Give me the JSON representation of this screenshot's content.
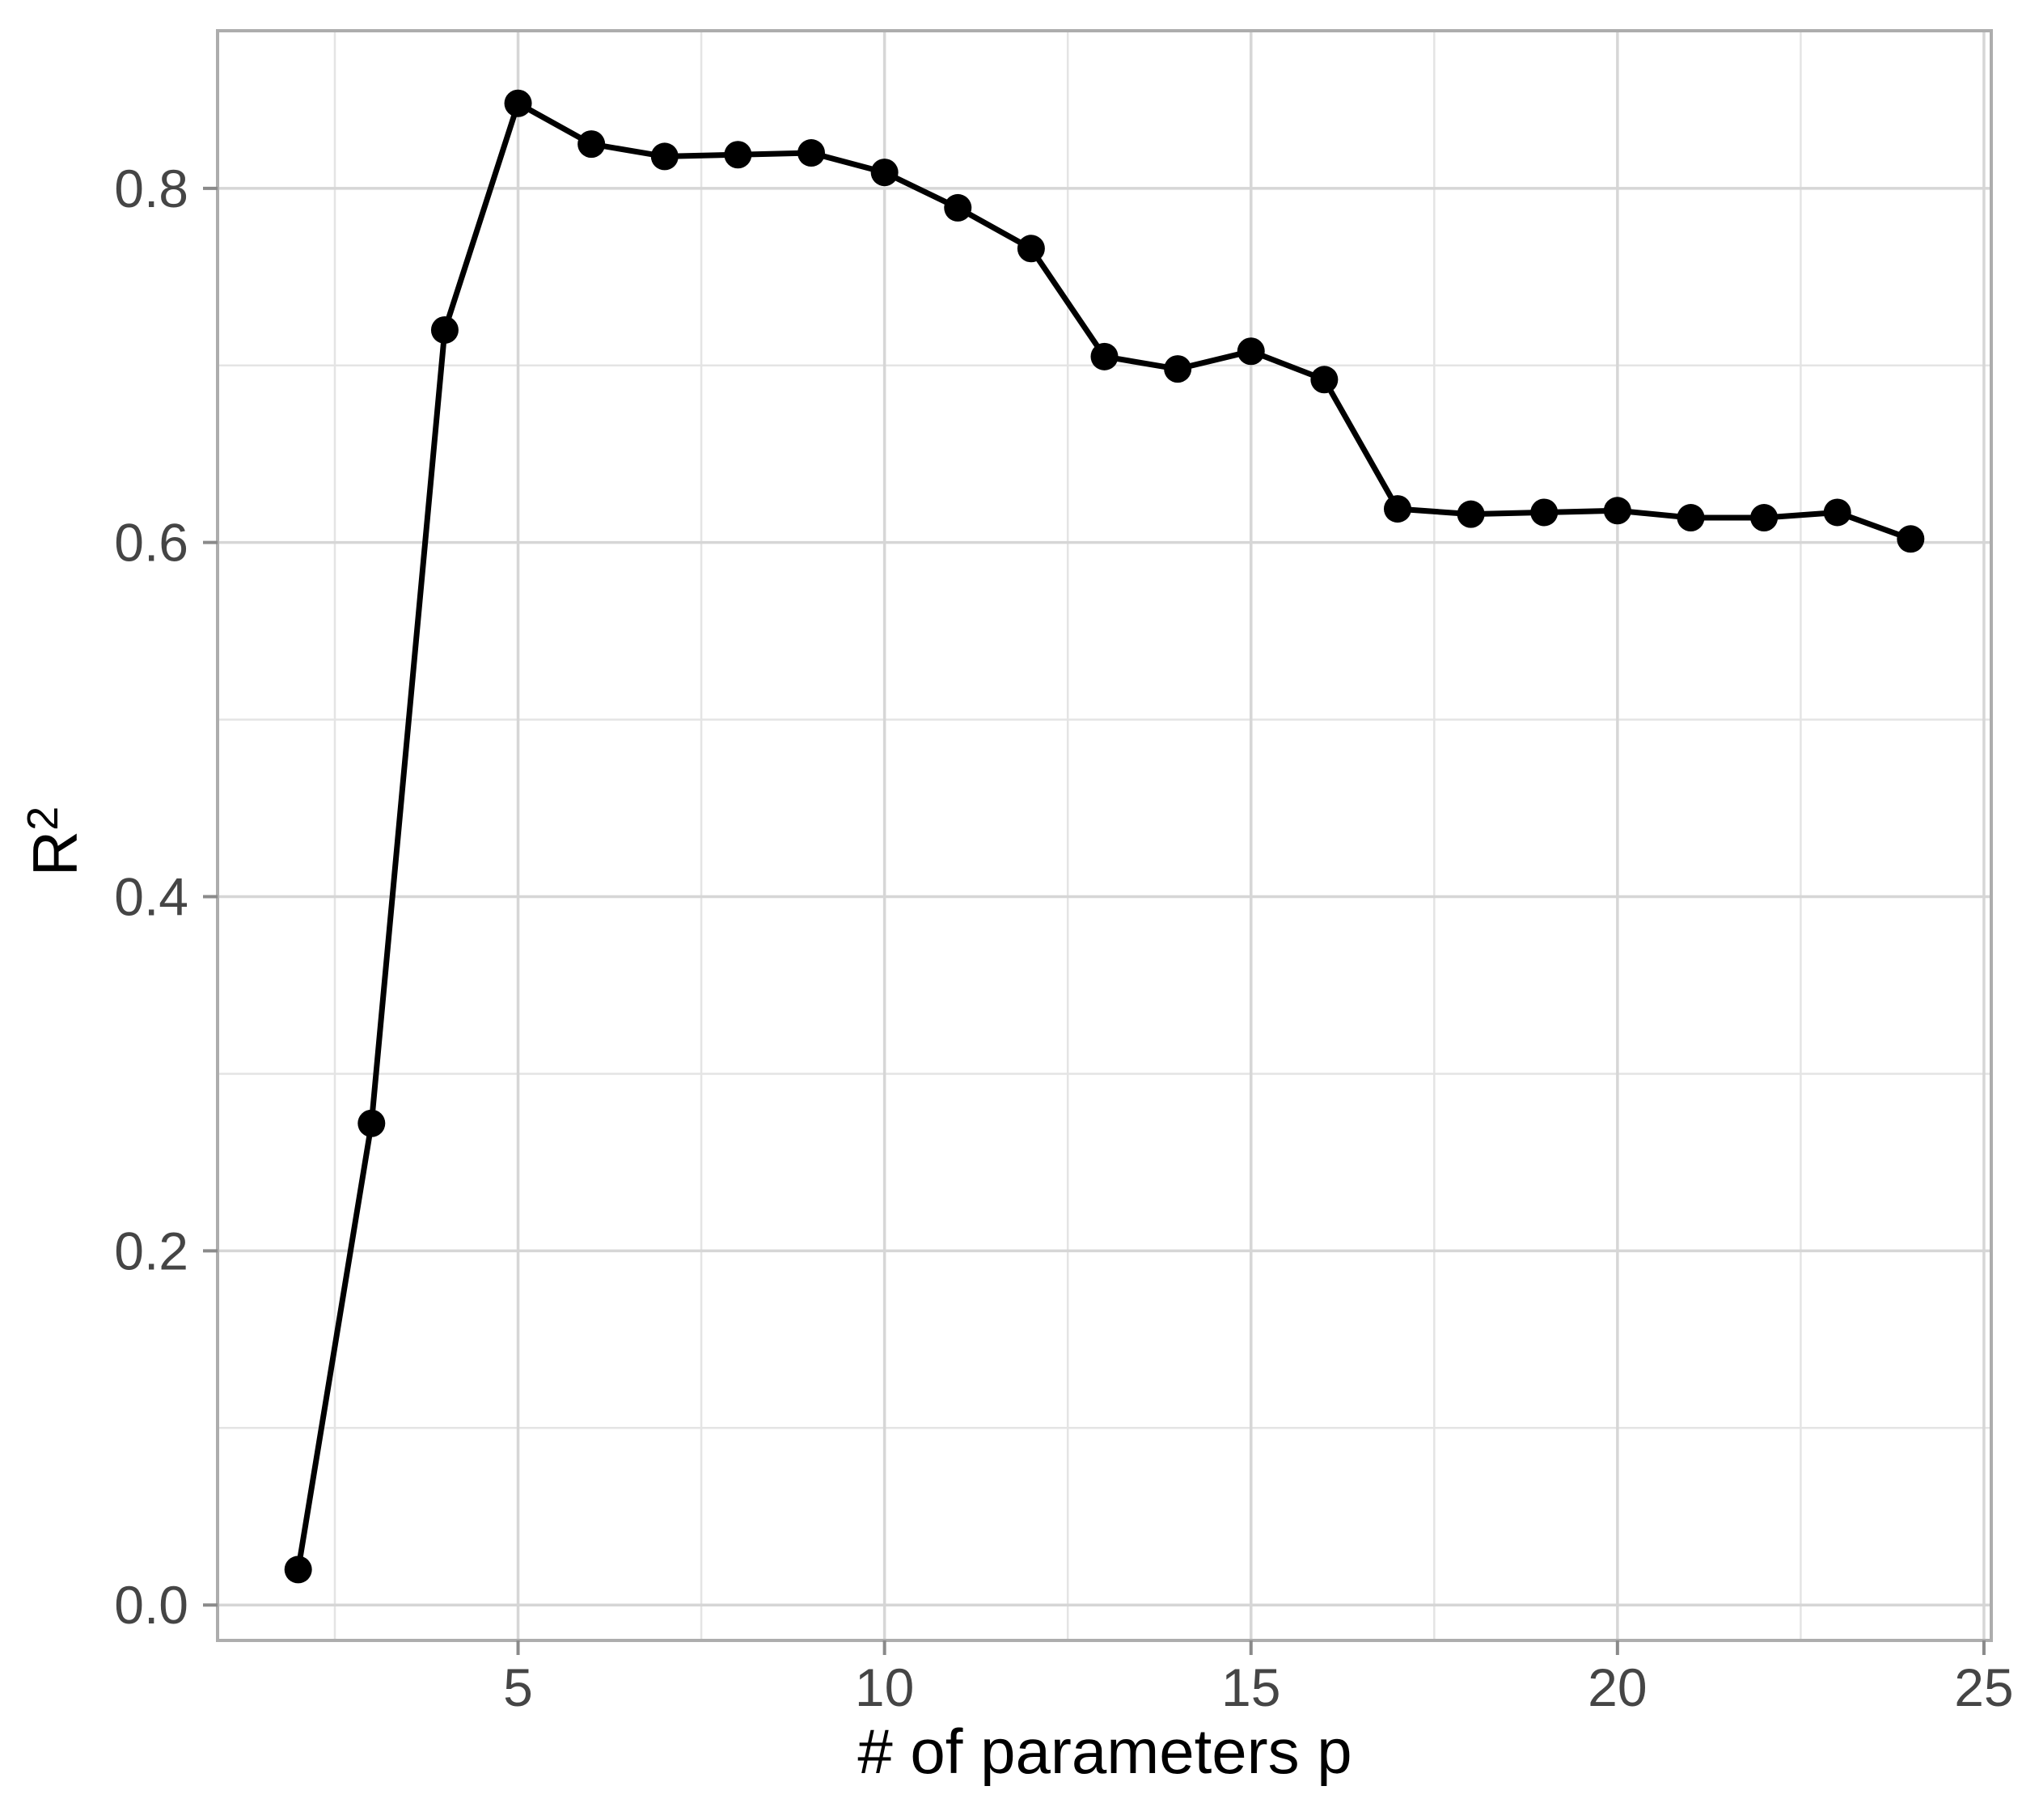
{
  "figure": {
    "kind": "ggplot-style line chart",
    "background": "#ffffff"
  },
  "chart_data": {
    "type": "line",
    "title": "",
    "xlabel": "# of parameters p",
    "ylabel": "R²",
    "ylabel_base": "R",
    "ylabel_sup": "2",
    "x": [
      2,
      3,
      4,
      5,
      6,
      7,
      8,
      9,
      10,
      11,
      12,
      13,
      14,
      15,
      16,
      17,
      18,
      19,
      20,
      21,
      22,
      23,
      24
    ],
    "y": [
      0.02,
      0.272,
      0.72,
      0.848,
      0.825,
      0.818,
      0.819,
      0.82,
      0.809,
      0.789,
      0.766,
      0.705,
      0.698,
      0.708,
      0.692,
      0.619,
      0.616,
      0.617,
      0.618,
      0.614,
      0.614,
      0.617,
      0.602
    ],
    "x_ticks": [
      5,
      10,
      15,
      20,
      25
    ],
    "x_tick_labels": [
      "5",
      "10",
      "15",
      "20",
      "25"
    ],
    "y_ticks": [
      0.0,
      0.2,
      0.4,
      0.6,
      0.8
    ],
    "y_tick_labels": [
      "0.0",
      "0.2",
      "0.4",
      "0.6",
      "0.8"
    ],
    "x_minor_gridlines": [
      2.5,
      7.5,
      12.5,
      17.5,
      22.5
    ],
    "y_minor_gridlines": [
      0.1,
      0.3,
      0.5,
      0.7
    ],
    "xlim": [
      0.9,
      25.1
    ],
    "ylim": [
      -0.02,
      0.889
    ],
    "grid": true,
    "legend": "none",
    "style": {
      "line_color": "#000000",
      "point_color": "#000000",
      "panel_background": "#ffffff",
      "panel_border_color": "#adadad",
      "grid_major_color": "#d6d6d6",
      "grid_minor_color": "#e4e4e4",
      "tick_mark_color": "#8a8a8a",
      "tick_label_color": "#454545",
      "axis_title_color": "#000000"
    }
  }
}
